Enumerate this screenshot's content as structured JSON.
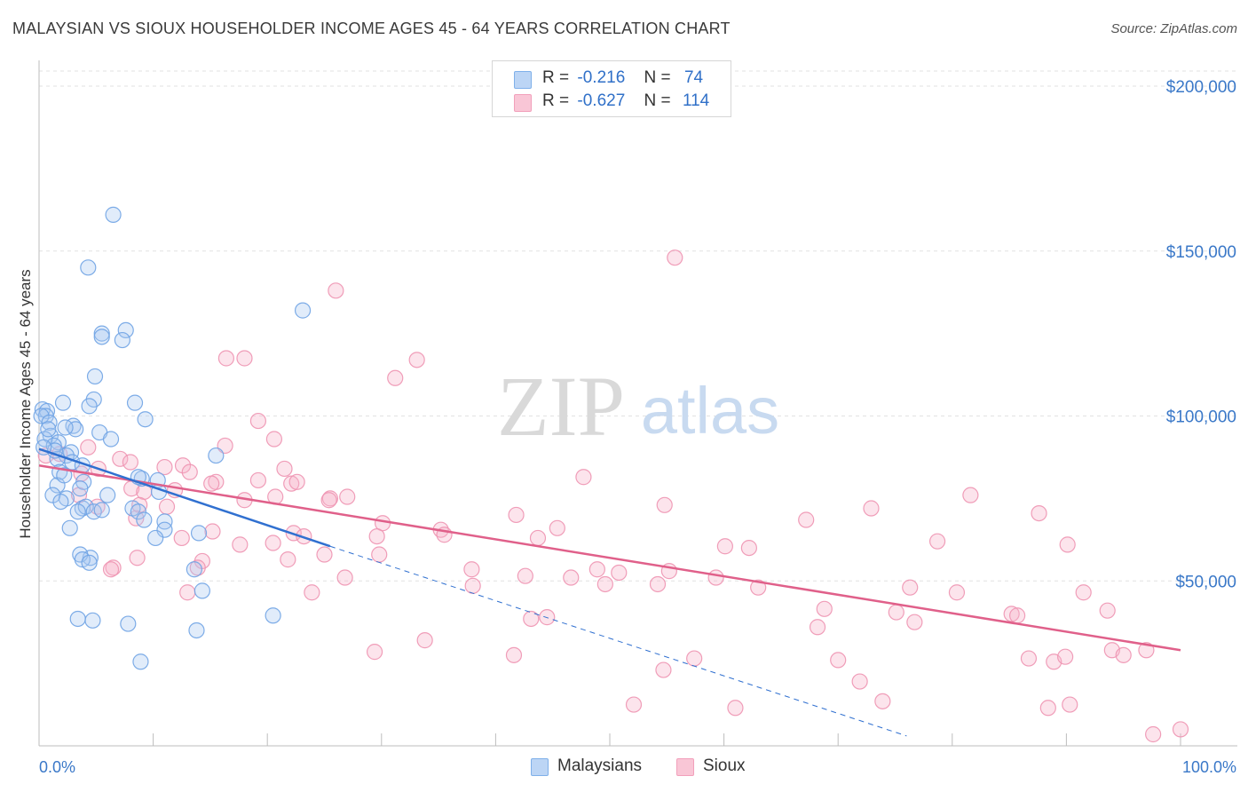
{
  "title": "MALAYSIAN VS SIOUX HOUSEHOLDER INCOME AGES 45 - 64 YEARS CORRELATION CHART",
  "source": "Source: ZipAtlas.com",
  "watermark": {
    "zip": "ZIP",
    "atlas": "atlas"
  },
  "legend": {
    "r_label": "R =",
    "n_label": "N =",
    "rows": [
      {
        "r": "-0.216",
        "n": "74"
      },
      {
        "r": "-0.627",
        "n": "114"
      }
    ]
  },
  "chart_data": {
    "type": "scatter",
    "title": "MALAYSIAN VS SIOUX HOUSEHOLDER INCOME AGES 45 - 64 YEARS CORRELATION CHART",
    "xlabel": "",
    "ylabel": "Householder Income Ages 45 - 64 years",
    "xlim": [
      0,
      100
    ],
    "ylim": [
      0,
      205000
    ],
    "x_tick_labels": [
      "0.0%",
      "100.0%"
    ],
    "y_ticks": [
      50000,
      100000,
      150000,
      200000
    ],
    "y_tick_labels": [
      "$50,000",
      "$100,000",
      "$150,000",
      "$200,000"
    ],
    "grid": true,
    "legend_position": "bottom-center",
    "series": [
      {
        "name": "Malaysians",
        "color": "#7fb0ea",
        "line_color": "#3070d0",
        "r": -0.216,
        "n": 74,
        "trend": {
          "x0": 0,
          "y0": 90000,
          "x1": 25.5,
          "y1": 60500,
          "dashed_to_x": 76,
          "dashed_to_y": 3000
        },
        "points": [
          [
            6.5,
            161000
          ],
          [
            4.3,
            145000
          ],
          [
            23.1,
            132000
          ],
          [
            5.5,
            125000
          ],
          [
            7.6,
            126000
          ],
          [
            5.5,
            124000
          ],
          [
            7.3,
            123000
          ],
          [
            4.9,
            112000
          ],
          [
            2.1,
            104000
          ],
          [
            8.4,
            104000
          ],
          [
            4.8,
            105000
          ],
          [
            4.4,
            103000
          ],
          [
            0.3,
            102000
          ],
          [
            0.7,
            101500
          ],
          [
            0.6,
            100000
          ],
          [
            9.3,
            99000
          ],
          [
            0.2,
            100000
          ],
          [
            3.0,
            97000
          ],
          [
            0.9,
            98000
          ],
          [
            3.2,
            96000
          ],
          [
            2.3,
            96500
          ],
          [
            5.3,
            95000
          ],
          [
            6.3,
            93000
          ],
          [
            1.0,
            94000
          ],
          [
            1.7,
            92000
          ],
          [
            0.5,
            93000
          ],
          [
            1.3,
            91000
          ],
          [
            2.8,
            89000
          ],
          [
            2.4,
            88000
          ],
          [
            1.6,
            87000
          ],
          [
            15.5,
            88000
          ],
          [
            2.9,
            86000
          ],
          [
            3.8,
            85000
          ],
          [
            1.8,
            83000
          ],
          [
            9.0,
            81000
          ],
          [
            8.7,
            81500
          ],
          [
            10.4,
            80500
          ],
          [
            3.9,
            80000
          ],
          [
            1.6,
            79000
          ],
          [
            3.6,
            78000
          ],
          [
            10.5,
            77000
          ],
          [
            6.0,
            76000
          ],
          [
            1.2,
            76000
          ],
          [
            2.4,
            75000
          ],
          [
            1.9,
            74000
          ],
          [
            3.8,
            72000
          ],
          [
            4.1,
            72500
          ],
          [
            4.8,
            71000
          ],
          [
            5.5,
            71500
          ],
          [
            8.2,
            72000
          ],
          [
            8.7,
            71000
          ],
          [
            3.4,
            71000
          ],
          [
            11.0,
            68000
          ],
          [
            9.2,
            68500
          ],
          [
            2.7,
            66000
          ],
          [
            11.0,
            65500
          ],
          [
            14.0,
            64500
          ],
          [
            10.2,
            63000
          ],
          [
            4.5,
            57000
          ],
          [
            3.6,
            58000
          ],
          [
            3.8,
            56500
          ],
          [
            4.4,
            55500
          ],
          [
            13.6,
            53500
          ],
          [
            14.3,
            47000
          ],
          [
            3.4,
            38500
          ],
          [
            4.7,
            38000
          ],
          [
            7.8,
            37000
          ],
          [
            20.5,
            39500
          ],
          [
            13.8,
            35000
          ],
          [
            8.9,
            25500
          ],
          [
            0.8,
            96000
          ],
          [
            1.4,
            89500
          ],
          [
            2.2,
            82000
          ],
          [
            0.4,
            90500
          ]
        ]
      },
      {
        "name": "Sioux",
        "color": "#f2a0bb",
        "line_color": "#e0608a",
        "r": -0.627,
        "n": 114,
        "trend": {
          "x0": 0,
          "y0": 85000,
          "x1": 100,
          "y1": 29000
        },
        "points": [
          [
            55.7,
            148000
          ],
          [
            26.0,
            138000
          ],
          [
            16.4,
            117500
          ],
          [
            18.0,
            117500
          ],
          [
            33.1,
            117000
          ],
          [
            31.2,
            111500
          ],
          [
            19.2,
            98500
          ],
          [
            20.6,
            93000
          ],
          [
            16.3,
            91000
          ],
          [
            4.3,
            90500
          ],
          [
            0.6,
            88000
          ],
          [
            1.8,
            88500
          ],
          [
            7.1,
            87000
          ],
          [
            8.0,
            86000
          ],
          [
            12.6,
            85000
          ],
          [
            11.0,
            84500
          ],
          [
            5.2,
            84000
          ],
          [
            21.5,
            84000
          ],
          [
            3.7,
            82500
          ],
          [
            47.7,
            81500
          ],
          [
            13.2,
            83000
          ],
          [
            15.5,
            80000
          ],
          [
            15.1,
            79500
          ],
          [
            19.2,
            80500
          ],
          [
            22.1,
            79500
          ],
          [
            22.6,
            80000
          ],
          [
            8.1,
            78000
          ],
          [
            9.2,
            77000
          ],
          [
            11.9,
            77500
          ],
          [
            25.5,
            75000
          ],
          [
            25.4,
            74500
          ],
          [
            27.0,
            75500
          ],
          [
            18.0,
            74500
          ],
          [
            81.6,
            76000
          ],
          [
            3.5,
            76000
          ],
          [
            8.8,
            73000
          ],
          [
            20.7,
            75500
          ],
          [
            54.8,
            73000
          ],
          [
            5.1,
            72500
          ],
          [
            11.2,
            72500
          ],
          [
            72.9,
            72000
          ],
          [
            87.6,
            70500
          ],
          [
            41.8,
            70000
          ],
          [
            8.5,
            69000
          ],
          [
            67.2,
            68500
          ],
          [
            30.1,
            67500
          ],
          [
            35.2,
            65500
          ],
          [
            45.4,
            66000
          ],
          [
            15.2,
            65000
          ],
          [
            12.5,
            63000
          ],
          [
            22.3,
            64500
          ],
          [
            23.2,
            63500
          ],
          [
            29.6,
            63500
          ],
          [
            35.5,
            64000
          ],
          [
            43.7,
            63000
          ],
          [
            78.7,
            62000
          ],
          [
            17.6,
            61000
          ],
          [
            20.5,
            61500
          ],
          [
            60.1,
            60500
          ],
          [
            62.2,
            60000
          ],
          [
            90.1,
            61000
          ],
          [
            25.0,
            58000
          ],
          [
            29.8,
            58000
          ],
          [
            8.6,
            57000
          ],
          [
            14.3,
            56000
          ],
          [
            21.8,
            56500
          ],
          [
            13.9,
            54000
          ],
          [
            6.5,
            54000
          ],
          [
            37.9,
            53500
          ],
          [
            48.9,
            53500
          ],
          [
            55.2,
            53000
          ],
          [
            50.8,
            52500
          ],
          [
            42.6,
            51500
          ],
          [
            26.8,
            51000
          ],
          [
            46.6,
            51000
          ],
          [
            59.3,
            51000
          ],
          [
            49.6,
            49000
          ],
          [
            54.2,
            49000
          ],
          [
            38.0,
            48500
          ],
          [
            63.0,
            48000
          ],
          [
            76.3,
            48000
          ],
          [
            80.4,
            46500
          ],
          [
            91.5,
            46500
          ],
          [
            23.9,
            46500
          ],
          [
            13.0,
            46500
          ],
          [
            68.8,
            41500
          ],
          [
            75.1,
            40500
          ],
          [
            85.2,
            40000
          ],
          [
            85.7,
            39500
          ],
          [
            93.6,
            41000
          ],
          [
            43.1,
            38500
          ],
          [
            76.7,
            37500
          ],
          [
            68.2,
            36000
          ],
          [
            29.4,
            28500
          ],
          [
            41.6,
            27500
          ],
          [
            57.4,
            26500
          ],
          [
            86.7,
            26500
          ],
          [
            88.9,
            25500
          ],
          [
            89.9,
            27000
          ],
          [
            70.0,
            26000
          ],
          [
            94.0,
            29000
          ],
          [
            95.0,
            27500
          ],
          [
            97.0,
            29000
          ],
          [
            54.7,
            23000
          ],
          [
            71.9,
            19500
          ],
          [
            73.9,
            13500
          ],
          [
            88.4,
            11500
          ],
          [
            90.3,
            12500
          ],
          [
            52.1,
            12500
          ],
          [
            61.0,
            11500
          ],
          [
            97.6,
            3500
          ],
          [
            100.0,
            5000
          ],
          [
            6.3,
            53500
          ],
          [
            33.8,
            32000
          ],
          [
            44.5,
            39000
          ]
        ]
      }
    ]
  }
}
